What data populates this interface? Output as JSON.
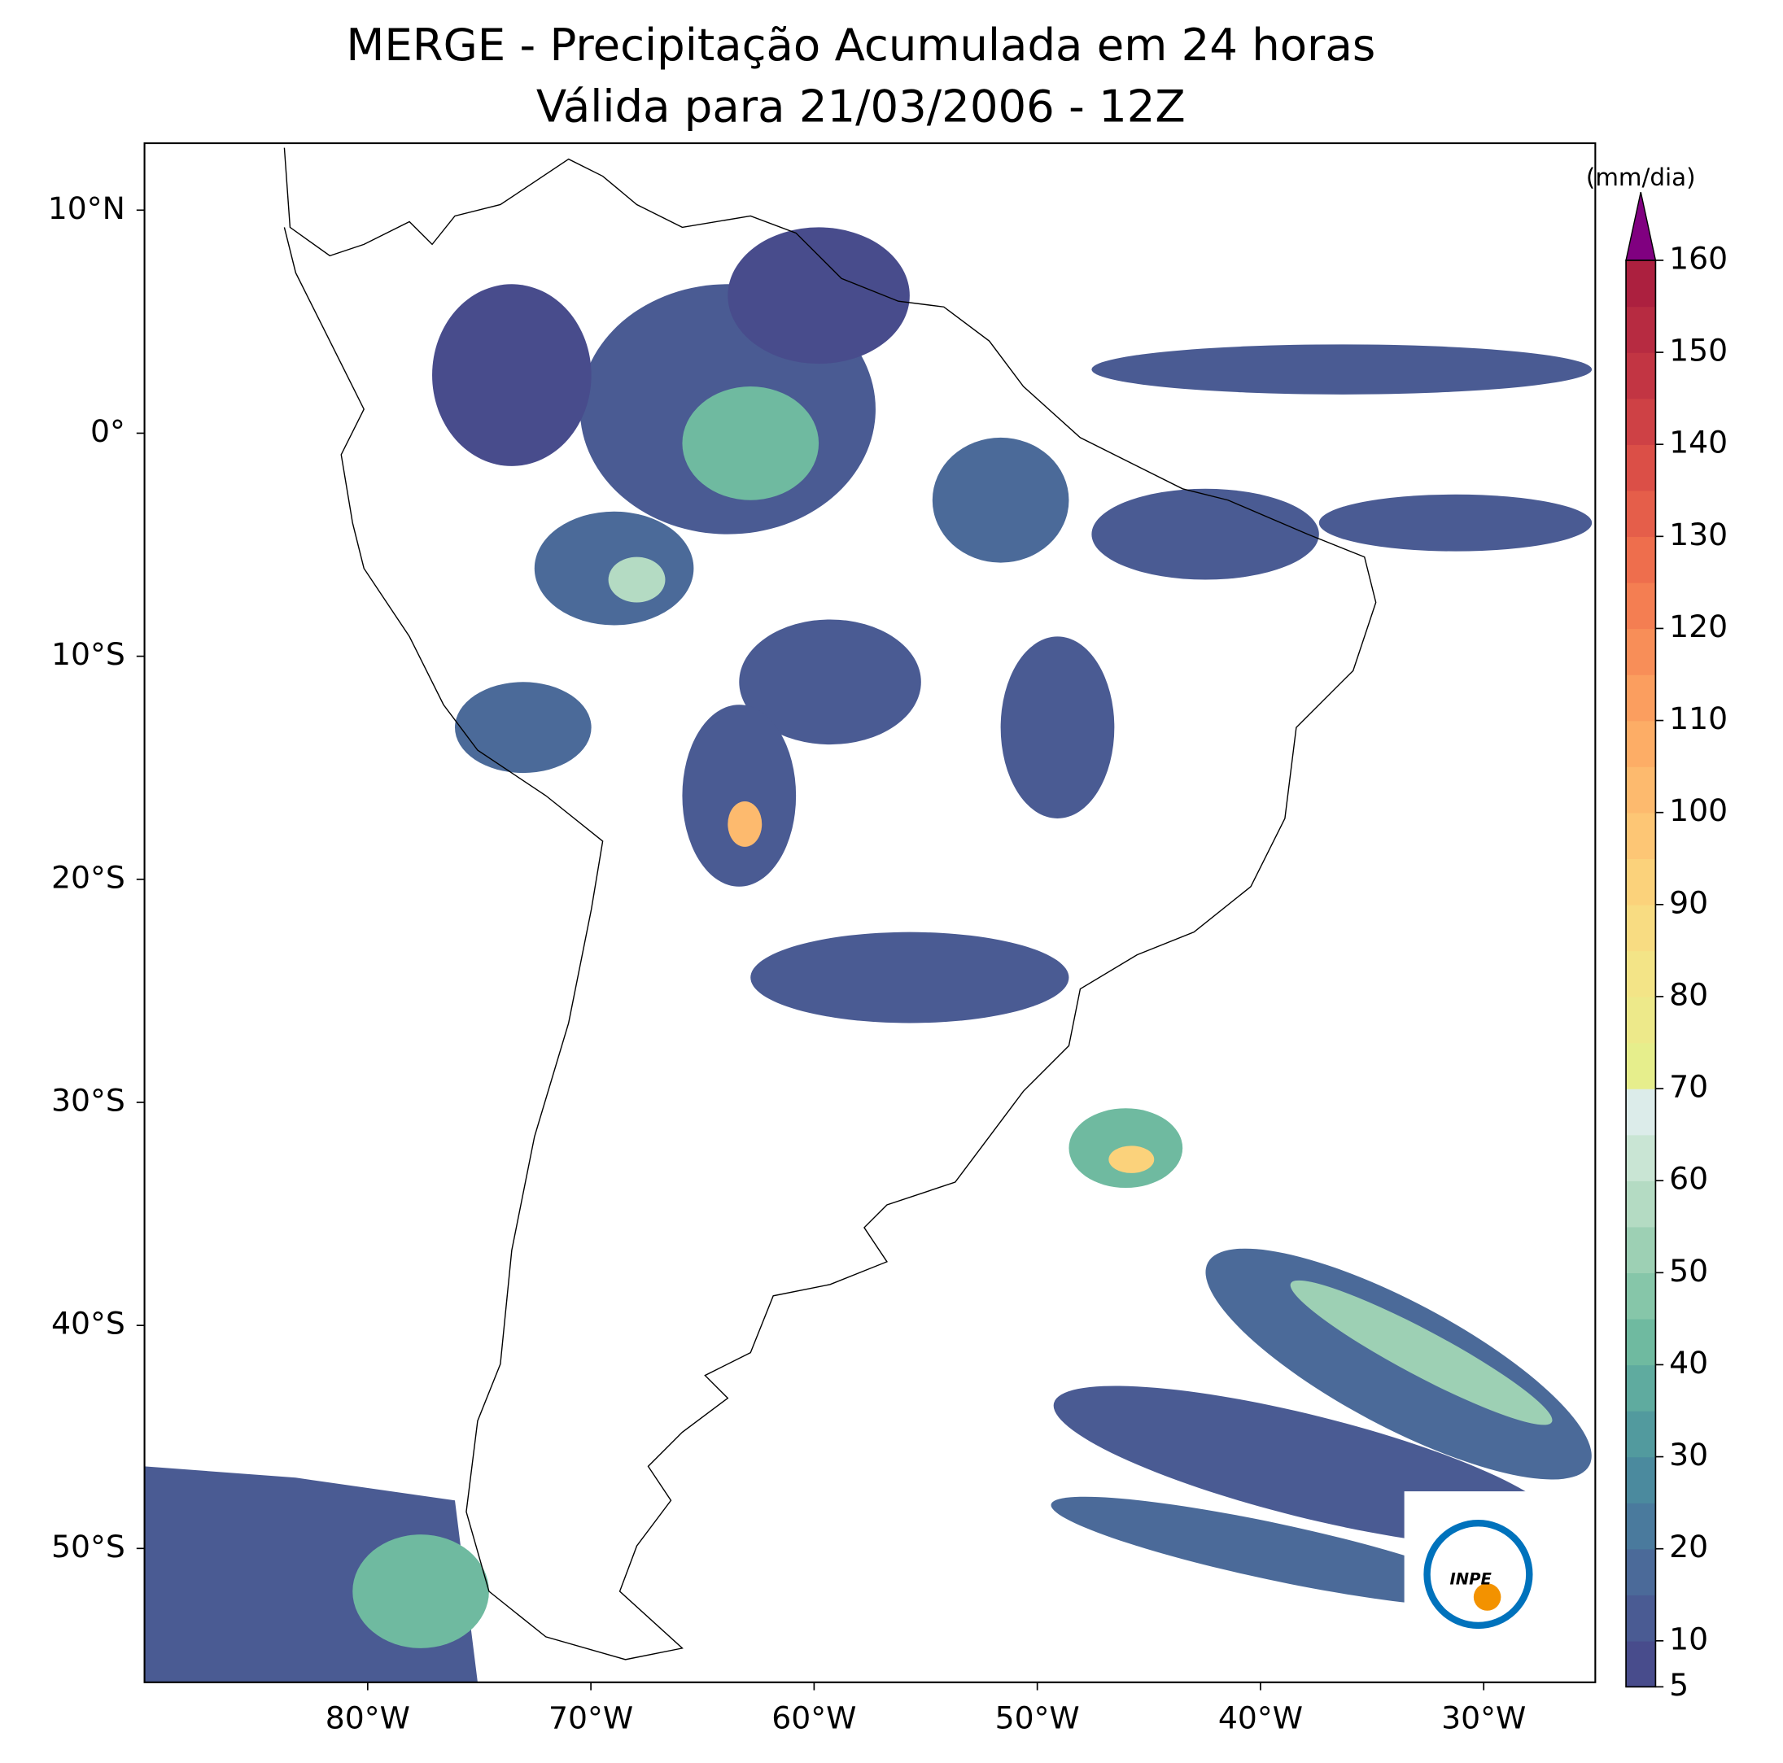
{
  "chart_data": {
    "type": "map",
    "title": "MERGE - Precipitação Acumulada em 24 horas",
    "subtitle": "Válida para 21/03/2006 - 12Z",
    "xlim": [
      -90,
      -25
    ],
    "ylim": [
      -56,
      13
    ],
    "xticks": [
      {
        "value": -80,
        "label": "80°W"
      },
      {
        "value": -70,
        "label": "70°W"
      },
      {
        "value": -60,
        "label": "60°W"
      },
      {
        "value": -50,
        "label": "50°W"
      },
      {
        "value": -40,
        "label": "40°W"
      },
      {
        "value": -30,
        "label": "30°W"
      }
    ],
    "yticks": [
      {
        "value": 10,
        "label": "10°N"
      },
      {
        "value": 0,
        "label": "0°"
      },
      {
        "value": -10,
        "label": "10°S"
      },
      {
        "value": -20,
        "label": "20°S"
      },
      {
        "value": -30,
        "label": "30°S"
      },
      {
        "value": -40,
        "label": "40°S"
      },
      {
        "value": -50,
        "label": "50°S"
      }
    ],
    "colorbar": {
      "label": "(mm/dia)",
      "levels": [
        5,
        10,
        15,
        20,
        25,
        30,
        35,
        40,
        45,
        50,
        55,
        60,
        65,
        70,
        75,
        80,
        85,
        90,
        95,
        100,
        105,
        110,
        115,
        120,
        125,
        130,
        135,
        140,
        145,
        150,
        155,
        160
      ],
      "ticks": [
        5,
        10,
        20,
        30,
        40,
        50,
        60,
        70,
        80,
        90,
        100,
        110,
        120,
        130,
        140,
        150,
        160
      ],
      "colors": [
        "#484c8c",
        "#4a5b93",
        "#4b6a99",
        "#4a7a9d",
        "#4b8a9e",
        "#529a9e",
        "#5fab9f",
        "#6fbaa0",
        "#86c6a9",
        "#9dd0b4",
        "#b4dbc3",
        "#c9e5d4",
        "#dcecea",
        "#e6ee8c",
        "#ede98a",
        "#f3e487",
        "#f8dc82",
        "#fbd27b",
        "#fdc675",
        "#fdba6e",
        "#fdad66",
        "#fb9e5f",
        "#f88e58",
        "#f47e52",
        "#ee6e4d",
        "#e55e4a",
        "#db4f47",
        "#ce4145",
        "#c23543",
        "#b72b41",
        "#ac203f"
      ],
      "extend_color": "#800080"
    }
  },
  "logo_text": "INPE"
}
